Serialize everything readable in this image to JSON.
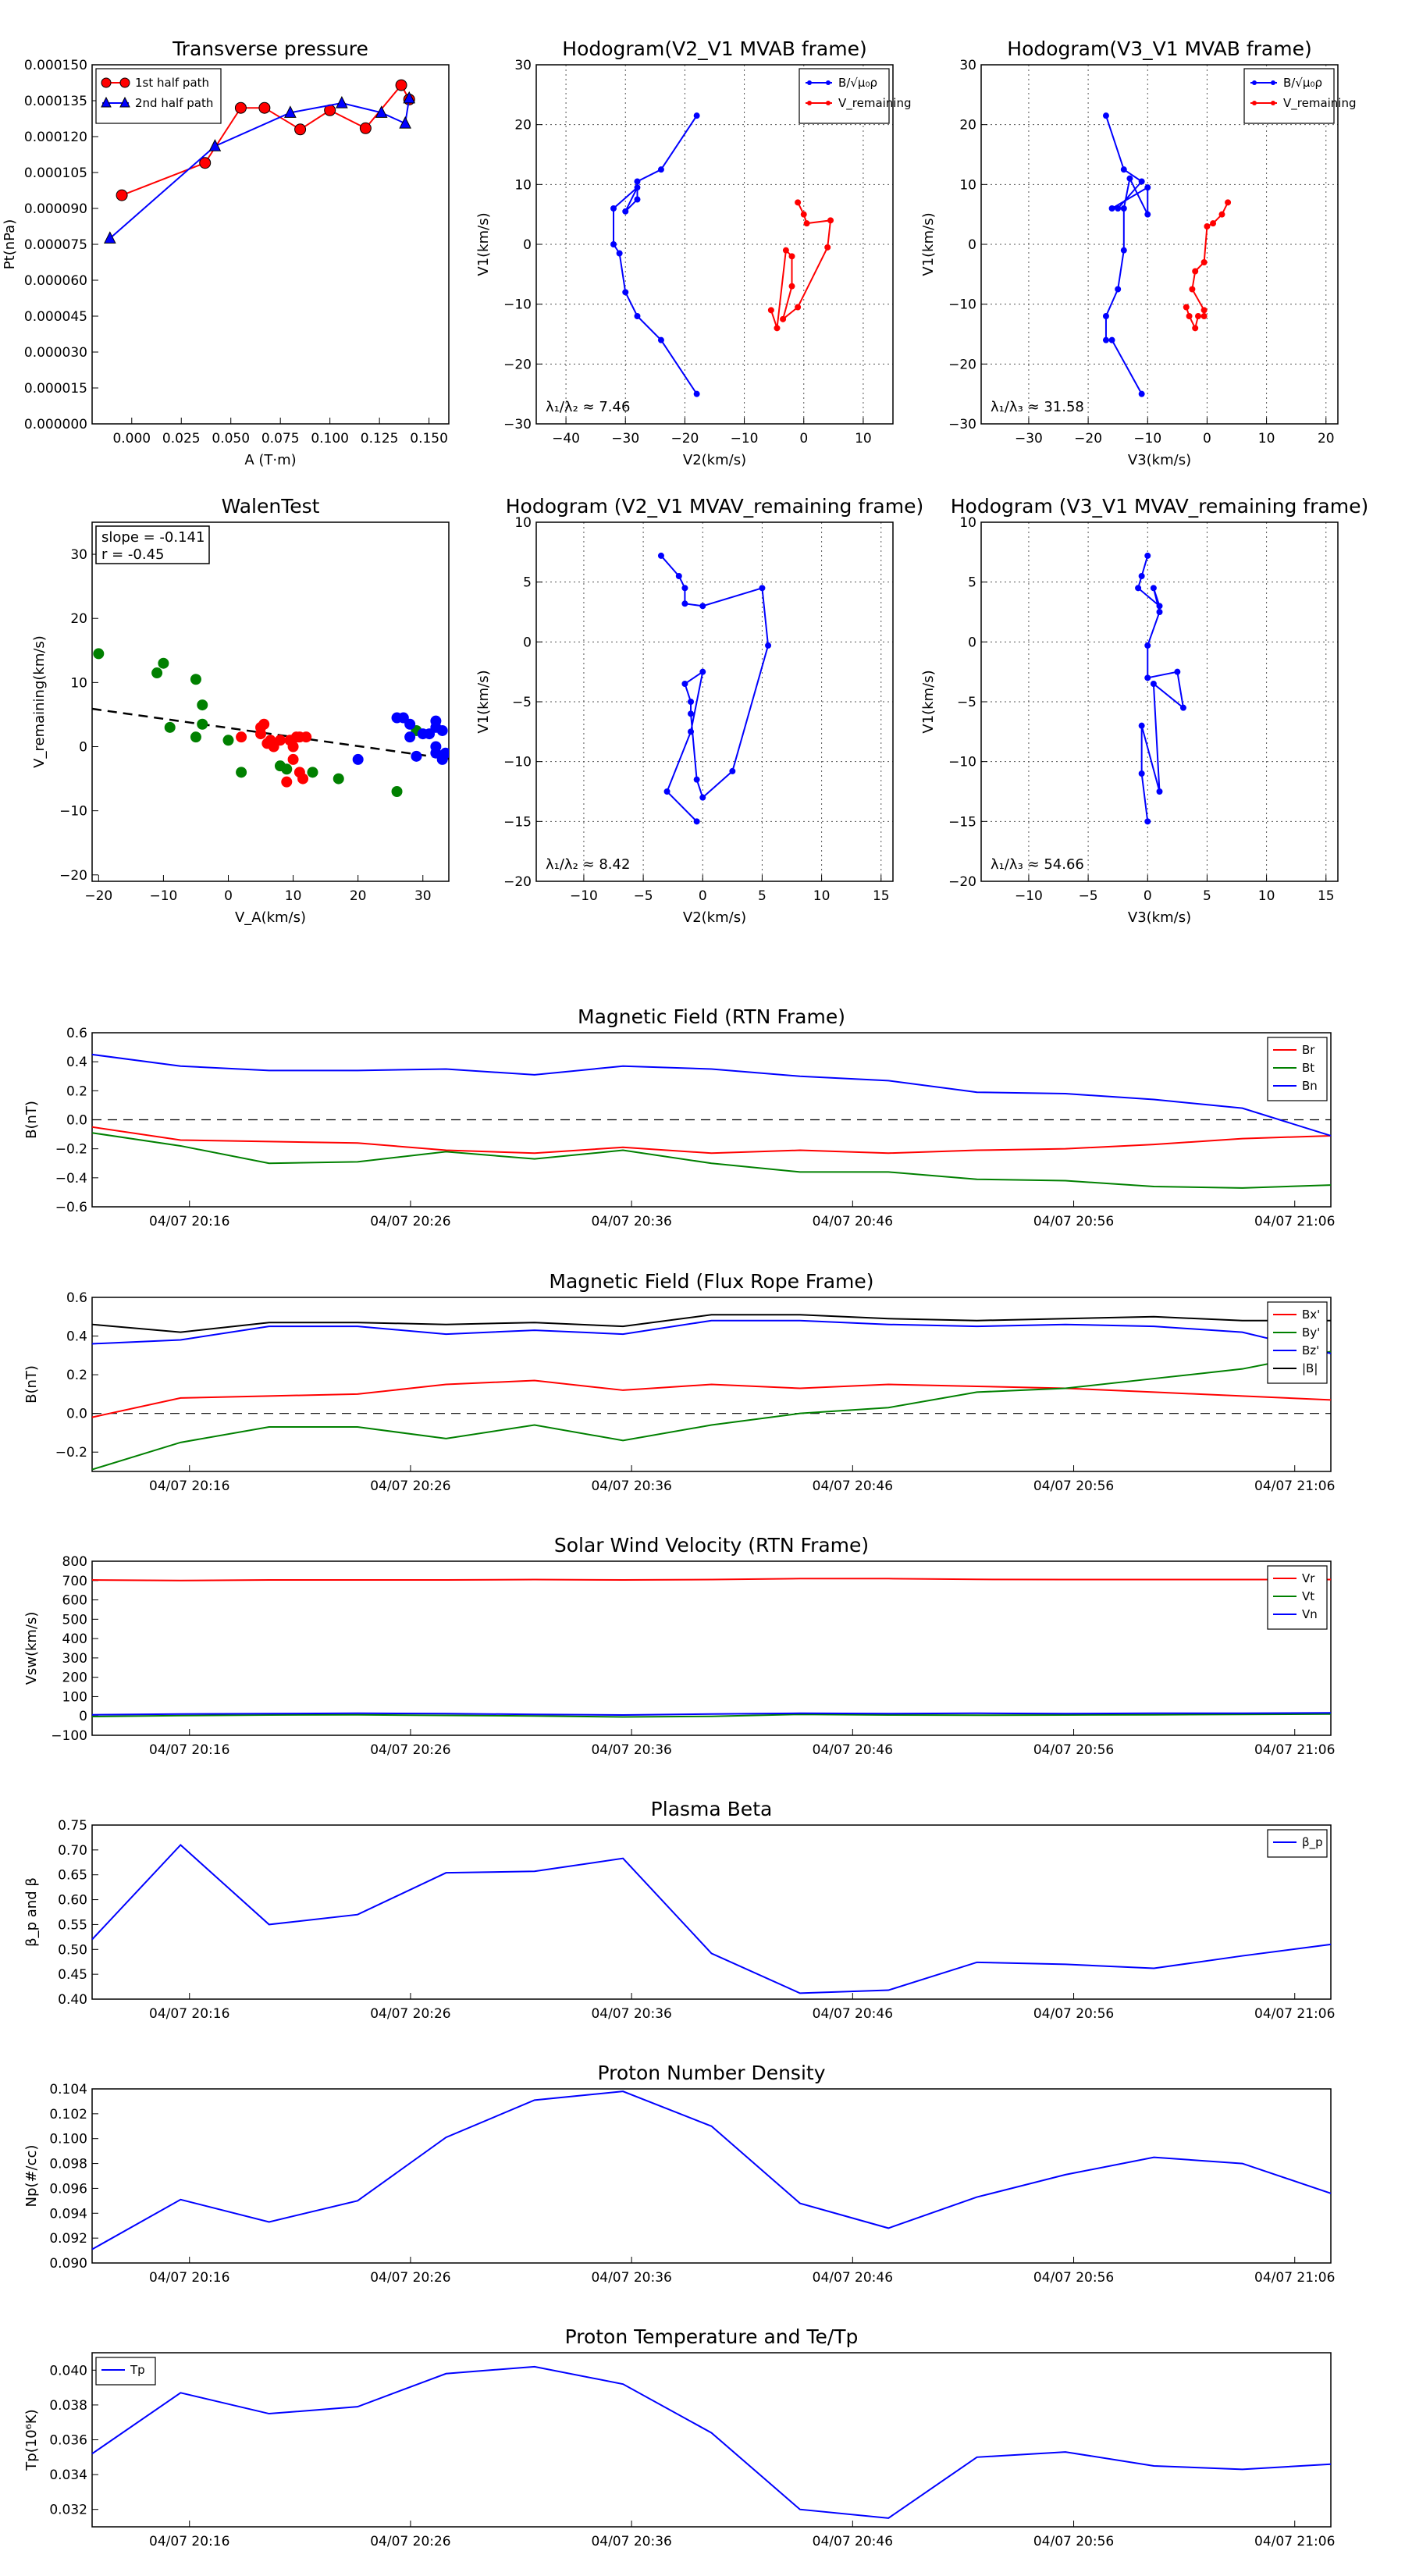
{
  "figure": {
    "background": "#ffffff",
    "series_colors": {
      "red": "#ff0000",
      "green": "#008000",
      "blue": "#0000ff",
      "black": "#000000"
    }
  },
  "time_axis_ticks": [
    "04/07 20:16",
    "04/07 20:26",
    "04/07 20:36",
    "04/07 20:46",
    "04/07 20:56",
    "04/07 21:06"
  ],
  "chart_data": [
    {
      "id": "transverse_pressure",
      "type": "line",
      "title": "Transverse pressure",
      "xlabel": "A (T·m)",
      "ylabel": "Pt(nPa)",
      "xlim": [
        -0.02,
        0.16
      ],
      "ylim": [
        0,
        0.00015
      ],
      "xticks": [
        "0.000",
        "0.025",
        "0.050",
        "0.075",
        "0.100",
        "0.125",
        "0.150"
      ],
      "yticks": [
        "0.000000",
        "0.000015",
        "0.000030",
        "0.000045",
        "0.000060",
        "0.000075",
        "0.000090",
        "0.000105",
        "0.000120",
        "0.000135",
        "0.000150"
      ],
      "legend": "top-left",
      "series": [
        {
          "name": "1st half path",
          "color": "#ff0000",
          "marker": "circle",
          "x": [
            -0.005,
            0.037,
            0.055,
            0.067,
            0.085,
            0.1,
            0.118,
            0.136,
            0.14
          ],
          "y": [
            9.55e-05,
            0.000109,
            0.000132,
            0.000132,
            0.000123,
            0.000131,
            0.0001235,
            0.0001415,
            0.0001355
          ]
        },
        {
          "name": "2nd half path",
          "color": "#0000ff",
          "marker": "triangle",
          "x": [
            -0.011,
            0.042,
            0.08,
            0.106,
            0.126,
            0.138,
            0.14
          ],
          "y": [
            7.75e-05,
            0.000116,
            0.00013,
            0.000134,
            0.00013,
            0.0001255,
            0.000136
          ]
        }
      ]
    },
    {
      "id": "hodo_v2_mvab",
      "type": "line",
      "title": "Hodogram(V2_V1 MVAB frame)",
      "xlabel": "V2(km/s)",
      "ylabel": "V1(km/s)",
      "xlim": [
        -45,
        15
      ],
      "ylim": [
        -30,
        30
      ],
      "xticks": [
        "−40",
        "−30",
        "−20",
        "−10",
        "0",
        "10"
      ],
      "yticks": [
        "−30",
        "−20",
        "−10",
        "0",
        "10",
        "20",
        "30"
      ],
      "annotation": "λ₁/λ₂ ≈ 7.46",
      "legend": "top-right",
      "series": [
        {
          "name": "B/√μ₀ρ",
          "color": "#0000ff",
          "x": [
            -18,
            -24,
            -28,
            -28,
            -30,
            -28,
            -32,
            -32,
            -31,
            -30,
            -28,
            -24,
            -18
          ],
          "y": [
            21.5,
            12.5,
            10.5,
            7.5,
            5.5,
            9.5,
            6,
            0,
            -1.5,
            -8,
            -12,
            -16,
            -25
          ]
        },
        {
          "name": "V_remaining",
          "color": "#ff0000",
          "x": [
            -1,
            0,
            0.5,
            4.5,
            4,
            -1,
            -3.5,
            -2,
            -2,
            -3,
            -4.5,
            -5.5
          ],
          "y": [
            7,
            5,
            3.5,
            4,
            -0.5,
            -10.5,
            -12.5,
            -7,
            -2,
            -1,
            -14,
            -11
          ]
        }
      ]
    },
    {
      "id": "hodo_v3_mvab",
      "type": "line",
      "title": "Hodogram(V3_V1 MVAB frame)",
      "xlabel": "V3(km/s)",
      "ylabel": "V1(km/s)",
      "xlim": [
        -38,
        22
      ],
      "ylim": [
        -30,
        30
      ],
      "xticks": [
        "−30",
        "−20",
        "−10",
        "0",
        "10",
        "20"
      ],
      "yticks": [
        "−30",
        "−20",
        "−10",
        "0",
        "10",
        "20",
        "30"
      ],
      "annotation": "λ₁/λ₃ ≈ 31.58",
      "legend": "top-right",
      "series": [
        {
          "name": "B/√μ₀ρ",
          "color": "#0000ff",
          "x": [
            -17,
            -14,
            -11,
            -15,
            -16,
            -10,
            -10,
            -13,
            -14,
            -14,
            -15,
            -17,
            -17,
            -16,
            -11
          ],
          "y": [
            21.5,
            12.5,
            10.5,
            6,
            6,
            9.5,
            5,
            11,
            6,
            -1,
            -7.5,
            -12,
            -16,
            -16,
            -25
          ]
        },
        {
          "name": "V_remaining",
          "color": "#ff0000",
          "x": [
            3.5,
            2.5,
            1,
            0,
            -0.5,
            -2,
            -2.5,
            -0.5,
            -0.5,
            -1.5,
            -2,
            -3,
            -3.5
          ],
          "y": [
            7,
            5,
            3.5,
            3,
            -3,
            -4.5,
            -7.5,
            -11,
            -12,
            -12,
            -14,
            -12,
            -10.5
          ]
        }
      ]
    },
    {
      "id": "walen_test",
      "type": "scatter",
      "title": "WalenTest",
      "xlabel": "V_A(km/s)",
      "ylabel": "V_remaining(km/s)",
      "xlim": [
        -21,
        34
      ],
      "ylim": [
        -21,
        35
      ],
      "xticks": [
        "−20",
        "−10",
        "0",
        "10",
        "20",
        "30"
      ],
      "yticks": [
        "−20",
        "−10",
        "0",
        "10",
        "20",
        "30"
      ],
      "annotation_lines": [
        "slope = -0.141",
        "r = -0.45"
      ],
      "fit_line": {
        "slope": -0.141,
        "x": [
          -21,
          34
        ],
        "y": [
          5.9,
          -1.9
        ]
      },
      "series": [
        {
          "color": "#008000",
          "x": [
            -20,
            -11,
            -10,
            -9,
            -5,
            -5,
            -4,
            -4,
            0,
            2,
            8,
            9,
            13,
            17,
            26,
            29
          ],
          "y": [
            14.5,
            11.5,
            13,
            3,
            10.5,
            1.5,
            3.5,
            6.5,
            1,
            -4,
            -3,
            -3.5,
            -4,
            -5,
            -7,
            2.5
          ]
        },
        {
          "color": "#ff0000",
          "x": [
            2,
            5,
            5,
            5.5,
            6,
            6.5,
            7,
            7,
            8,
            9,
            9.5,
            10,
            10,
            10.5,
            11,
            11,
            11.5,
            12
          ],
          "y": [
            1.5,
            2,
            3,
            3.5,
            0.5,
            1,
            0,
            0.5,
            1,
            -5.5,
            1,
            0,
            -2,
            1.5,
            1.5,
            -4,
            -5,
            1.5
          ]
        },
        {
          "color": "#0000ff",
          "x": [
            20,
            26,
            27,
            28,
            28,
            29,
            30,
            31,
            32,
            32,
            32,
            32,
            33,
            33,
            33,
            33.5
          ],
          "y": [
            -2,
            4.5,
            4.5,
            3.5,
            1.5,
            -1.5,
            2,
            2,
            -1,
            0,
            3,
            4,
            2.5,
            -2,
            -1.5,
            -1
          ]
        }
      ]
    },
    {
      "id": "hodo_v2_mvav",
      "type": "line",
      "title": "Hodogram (V2_V1 MVAV_remaining frame)",
      "xlabel": "V2(km/s)",
      "ylabel": "V1(km/s)",
      "xlim": [
        -14,
        16
      ],
      "ylim": [
        -20,
        10
      ],
      "xticks": [
        "−10",
        "−5",
        "0",
        "5",
        "10",
        "15"
      ],
      "yticks": [
        "−20",
        "−15",
        "−10",
        "−5",
        "0",
        "5",
        "10"
      ],
      "annotation": "λ₁/λ₂ ≈ 8.42",
      "series": [
        {
          "color": "#0000ff",
          "x": [
            -3.5,
            -2,
            -1.5,
            -1.5,
            0,
            5,
            5.5,
            2.5,
            0,
            -0.5,
            -1,
            -1,
            -1.5,
            0,
            -1,
            -3,
            -0.5
          ],
          "y": [
            7.2,
            5.5,
            4.5,
            3.2,
            3,
            4.5,
            -0.3,
            -10.8,
            -13,
            -11.5,
            -6,
            -5,
            -3.5,
            -2.5,
            -7.5,
            -12.5,
            -15
          ]
        }
      ]
    },
    {
      "id": "hodo_v3_mvav",
      "type": "line",
      "title": "Hodogram (V3_V1 MVAV_remaining frame)",
      "xlabel": "V3(km/s)",
      "ylabel": "V1(km/s)",
      "xlim": [
        -14,
        16
      ],
      "ylim": [
        -20,
        10
      ],
      "xticks": [
        "−10",
        "−5",
        "0",
        "5",
        "10",
        "15"
      ],
      "yticks": [
        "−20",
        "−15",
        "−10",
        "−5",
        "0",
        "5",
        "10"
      ],
      "annotation": "λ₁/λ₃ ≈ 54.66",
      "series": [
        {
          "color": "#0000ff",
          "x": [
            0,
            -0.5,
            -0.8,
            1,
            0.5,
            1,
            0,
            0,
            2.5,
            3,
            0.5,
            1,
            -0.5,
            -0.5,
            0
          ],
          "y": [
            7.2,
            5.5,
            4.5,
            3,
            4.5,
            2.5,
            -0.3,
            -3,
            -2.5,
            -5.5,
            -3.5,
            -12.5,
            -7,
            -11,
            -15
          ]
        }
      ]
    },
    {
      "id": "b_rtn",
      "type": "line",
      "title": "Magnetic Field (RTN Frame)",
      "ylabel": "B(nT)",
      "ylim": [
        -0.6,
        0.6
      ],
      "yticks": [
        "−0.6",
        "−0.4",
        "−0.2",
        "0.0",
        "0.2",
        "0.4",
        "0.6"
      ],
      "zero_line": true,
      "legend": "top-right",
      "series": [
        {
          "name": "Br",
          "color": "#ff0000",
          "y": [
            -0.05,
            -0.14,
            -0.15,
            -0.16,
            -0.21,
            -0.23,
            -0.19,
            -0.23,
            -0.21,
            -0.23,
            -0.21,
            -0.2,
            -0.17,
            -0.13,
            -0.11
          ]
        },
        {
          "name": "Bt",
          "color": "#008000",
          "y": [
            -0.09,
            -0.18,
            -0.3,
            -0.29,
            -0.22,
            -0.27,
            -0.21,
            -0.3,
            -0.36,
            -0.36,
            -0.41,
            -0.42,
            -0.46,
            -0.47,
            -0.45
          ]
        },
        {
          "name": "Bn",
          "color": "#0000ff",
          "y": [
            0.45,
            0.37,
            0.34,
            0.34,
            0.35,
            0.31,
            0.37,
            0.35,
            0.3,
            0.27,
            0.19,
            0.18,
            0.14,
            0.08,
            -0.11
          ]
        }
      ]
    },
    {
      "id": "b_fluxrope",
      "type": "line",
      "title": "Magnetic Field (Flux Rope Frame)",
      "ylabel": "B(nT)",
      "ylim": [
        -0.3,
        0.6
      ],
      "yticks": [
        "−0.2",
        "0.0",
        "0.2",
        "0.4",
        "0.6"
      ],
      "zero_line": true,
      "legend": "top-right",
      "series": [
        {
          "name": "Bx'",
          "color": "#ff0000",
          "y": [
            -0.02,
            0.08,
            0.09,
            0.1,
            0.15,
            0.17,
            0.12,
            0.15,
            0.13,
            0.15,
            0.14,
            0.13,
            0.11,
            0.09,
            0.07
          ]
        },
        {
          "name": "By'",
          "color": "#008000",
          "y": [
            -0.29,
            -0.15,
            -0.07,
            -0.07,
            -0.13,
            -0.06,
            -0.14,
            -0.06,
            0.0,
            0.03,
            0.11,
            0.13,
            0.18,
            0.23,
            0.32
          ]
        },
        {
          "name": "Bz'",
          "color": "#0000ff",
          "y": [
            0.36,
            0.38,
            0.45,
            0.45,
            0.41,
            0.43,
            0.41,
            0.48,
            0.48,
            0.46,
            0.45,
            0.46,
            0.45,
            0.42,
            0.31
          ]
        },
        {
          "name": "|B|",
          "color": "#000000",
          "y": [
            0.46,
            0.42,
            0.47,
            0.47,
            0.46,
            0.47,
            0.45,
            0.51,
            0.51,
            0.49,
            0.48,
            0.49,
            0.5,
            0.48,
            0.48
          ]
        }
      ]
    },
    {
      "id": "vsw_rtn",
      "type": "line",
      "title": "Solar Wind Velocity (RTN Frame)",
      "ylabel": "Vsw(km/s)",
      "ylim": [
        -100,
        800
      ],
      "yticks": [
        "−100",
        "0",
        "100",
        "200",
        "300",
        "400",
        "500",
        "600",
        "700",
        "800"
      ],
      "legend": "top-right",
      "series": [
        {
          "name": "Vr",
          "color": "#ff0000",
          "y": [
            703,
            700,
            703,
            703,
            703,
            705,
            703,
            705,
            710,
            710,
            706,
            705,
            705,
            705,
            705
          ]
        },
        {
          "name": "Vt",
          "color": "#008000",
          "y": [
            -3,
            2,
            5,
            6,
            3,
            0,
            -5,
            -2,
            8,
            5,
            4,
            5,
            6,
            8,
            10
          ]
        },
        {
          "name": "Vn",
          "color": "#0000ff",
          "y": [
            6,
            10,
            12,
            14,
            12,
            8,
            5,
            10,
            14,
            12,
            14,
            12,
            14,
            14,
            16
          ]
        }
      ]
    },
    {
      "id": "plasma_beta",
      "type": "line",
      "title": "Plasma Beta",
      "ylabel": "β_p and β",
      "ylim": [
        0.4,
        0.75
      ],
      "yticks": [
        "0.40",
        "0.45",
        "0.50",
        "0.55",
        "0.60",
        "0.65",
        "0.70",
        "0.75"
      ],
      "legend": "top-right",
      "series": [
        {
          "name": "β_p",
          "color": "#0000ff",
          "y": [
            0.52,
            0.71,
            0.55,
            0.57,
            0.654,
            0.657,
            0.683,
            0.492,
            0.412,
            0.418,
            0.474,
            0.47,
            0.462,
            0.487,
            0.51
          ]
        }
      ]
    },
    {
      "id": "np",
      "type": "line",
      "title": "Proton Number Density",
      "ylabel": "Np(#/cc)",
      "ylim": [
        0.09,
        0.104
      ],
      "yticks": [
        "0.090",
        "0.092",
        "0.094",
        "0.096",
        "0.098",
        "0.100",
        "0.102",
        "0.104"
      ],
      "series": [
        {
          "color": "#0000ff",
          "y": [
            0.0911,
            0.0951,
            0.0933,
            0.095,
            0.1001,
            0.1031,
            0.1038,
            0.101,
            0.0948,
            0.0928,
            0.0953,
            0.0971,
            0.0985,
            0.098,
            0.0956
          ]
        }
      ]
    },
    {
      "id": "tp",
      "type": "line",
      "title": "Proton Temperature and Te/Tp",
      "ylabel": "Tp(10⁶K)",
      "ylim": [
        0.031,
        0.041
      ],
      "yticks": [
        "0.032",
        "0.034",
        "0.036",
        "0.038",
        "0.040"
      ],
      "legend": "top-left",
      "series": [
        {
          "name": "Tp",
          "color": "#0000ff",
          "y": [
            0.0352,
            0.0387,
            0.0375,
            0.0379,
            0.0398,
            0.0402,
            0.0392,
            0.0364,
            0.032,
            0.0315,
            0.035,
            0.0353,
            0.0345,
            0.0343,
            0.0346
          ]
        }
      ]
    }
  ]
}
